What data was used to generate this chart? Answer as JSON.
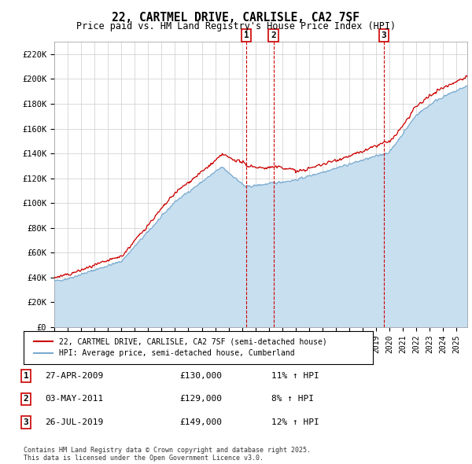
{
  "title": "22, CARTMEL DRIVE, CARLISLE, CA2 7SF",
  "subtitle": "Price paid vs. HM Land Registry's House Price Index (HPI)",
  "ylabel_ticks": [
    "£0",
    "£20K",
    "£40K",
    "£60K",
    "£80K",
    "£100K",
    "£120K",
    "£140K",
    "£160K",
    "£180K",
    "£200K",
    "£220K"
  ],
  "ylim": [
    0,
    230000
  ],
  "xlim_start": 1995.0,
  "xlim_end": 2025.8,
  "legend_house": "22, CARTMEL DRIVE, CARLISLE, CA2 7SF (semi-detached house)",
  "legend_hpi": "HPI: Average price, semi-detached house, Cumberland",
  "house_color": "#cc0000",
  "hpi_color": "#7aabcf",
  "hpi_fill_color": "#c8dff0",
  "annotation_color": "#cc0000",
  "footnote": "Contains HM Land Registry data © Crown copyright and database right 2025.\nThis data is licensed under the Open Government Licence v3.0.",
  "transactions": [
    {
      "num": 1,
      "date": "27-APR-2009",
      "price": 130000,
      "hpi_pct": "11% ↑ HPI",
      "year": 2009.32
    },
    {
      "num": 2,
      "date": "03-MAY-2011",
      "price": 129000,
      "hpi_pct": "8% ↑ HPI",
      "year": 2011.34
    },
    {
      "num": 3,
      "date": "26-JUL-2019",
      "price": 149000,
      "hpi_pct": "12% ↑ HPI",
      "year": 2019.57
    }
  ],
  "background_color": "#ffffff",
  "plot_bg_color": "#ffffff",
  "grid_color": "#cccccc"
}
